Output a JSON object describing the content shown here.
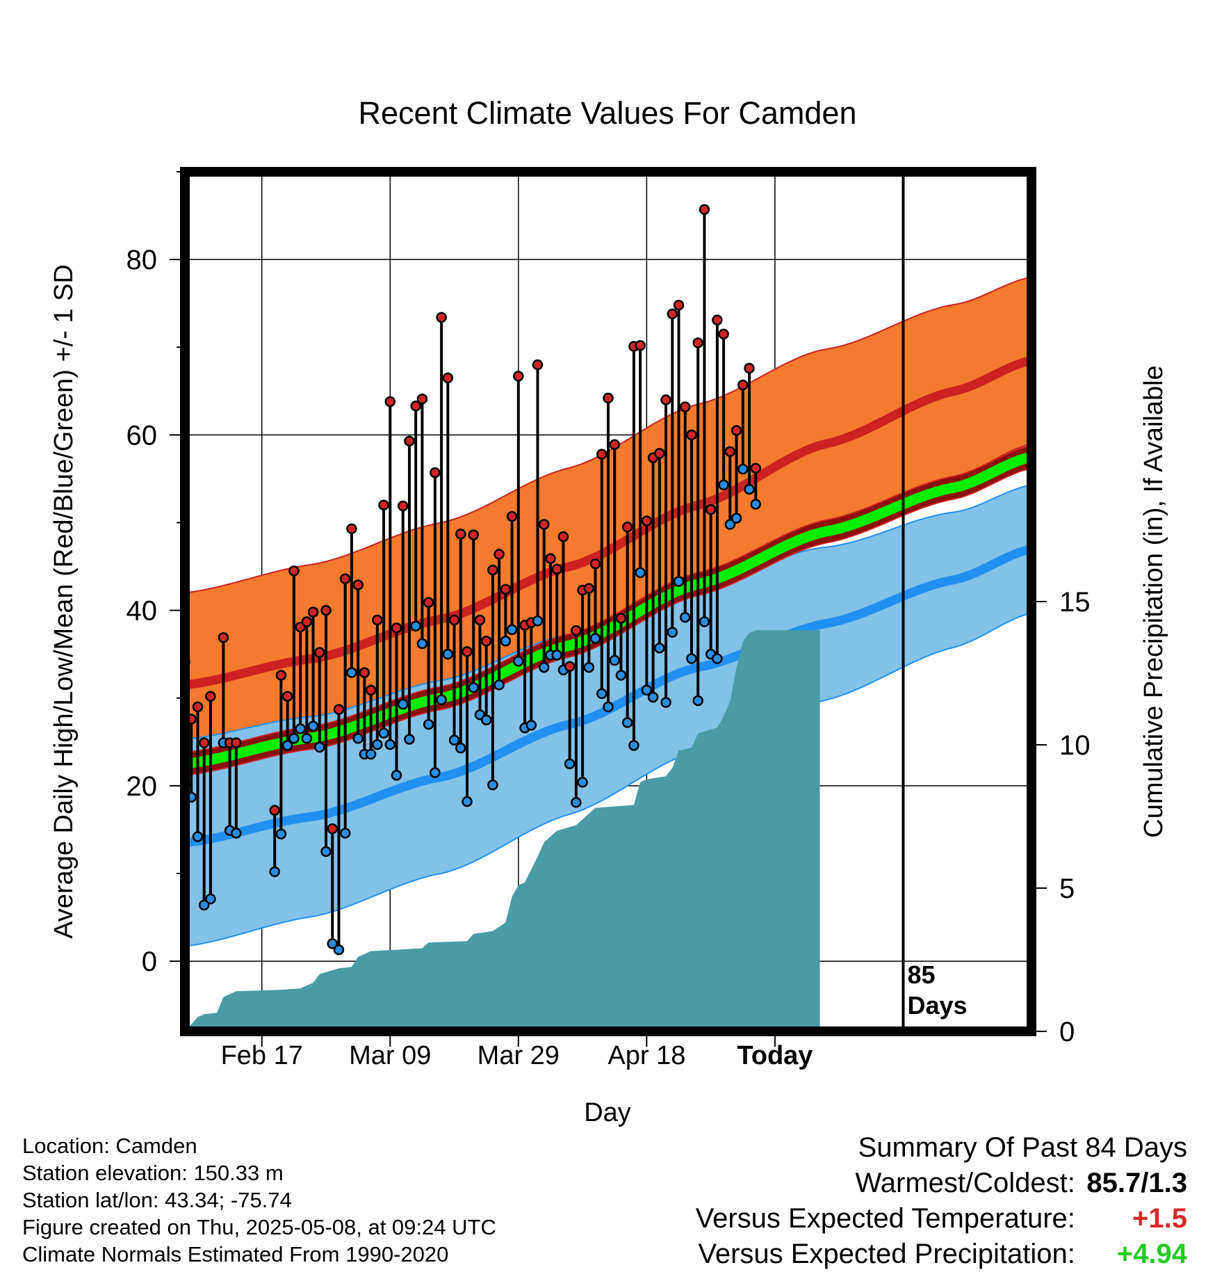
{
  "chart_data": {
    "type": "line",
    "title": "Recent Climate Values For Camden",
    "xlabel": "Day",
    "ylabel": "Average Daily High/Low/Mean (Red/Blue/Green) +/- 1 SD",
    "y2label": "Cumulative Precipitation (in), If Available",
    "x_tick_labels": [
      "Feb 17",
      "Mar 09",
      "Mar 29",
      "Apr 18",
      "Today"
    ],
    "y_ticks": [
      0,
      20,
      40,
      60,
      80
    ],
    "y2_ticks": [
      0,
      5,
      10,
      15
    ],
    "ylim": [
      -8,
      90
    ],
    "y2lim": [
      0,
      30
    ],
    "day_annotation": "85\nDays",
    "colors": {
      "high_band": "#f47a2f",
      "high_line": "#cc2222",
      "low_band": "#82c1e8",
      "low_line": "#2290f0",
      "mean_band": "#8b0f0f",
      "mean_line": "#00ee00",
      "precip": "#4a9ba5",
      "marker_high": "#d02525",
      "marker_low": "#2a8ee0"
    },
    "normal_high": [
      [
        0,
        31.5
      ],
      [
        20,
        34.5
      ],
      [
        40,
        39
      ],
      [
        60,
        45
      ],
      [
        80,
        52
      ],
      [
        100,
        59
      ],
      [
        120,
        65
      ],
      [
        132,
        68.5
      ]
    ],
    "normal_high_sd": [
      [
        0,
        10.5
      ],
      [
        40,
        11
      ],
      [
        80,
        11.5
      ],
      [
        132,
        9.5
      ]
    ],
    "normal_low": [
      [
        0,
        13.5
      ],
      [
        20,
        16.5
      ],
      [
        40,
        21
      ],
      [
        60,
        27
      ],
      [
        80,
        33.5
      ],
      [
        100,
        38.5
      ],
      [
        120,
        43.5
      ],
      [
        132,
        47
      ]
    ],
    "normal_low_sd": [
      [
        0,
        11.8
      ],
      [
        40,
        11
      ],
      [
        80,
        9.5
      ],
      [
        132,
        7.3
      ]
    ],
    "normal_mean": [
      [
        0,
        22.5
      ],
      [
        20,
        25.5
      ],
      [
        40,
        30
      ],
      [
        60,
        36
      ],
      [
        80,
        43
      ],
      [
        100,
        49
      ],
      [
        120,
        54
      ],
      [
        132,
        57.5
      ]
    ],
    "normal_mean_sd": [
      [
        0,
        1.3
      ],
      [
        132,
        1.3
      ]
    ],
    "observed": [
      {
        "d": 0,
        "hi": 34.1,
        "lo": 20.1
      },
      {
        "d": 1,
        "hi": 27.6,
        "lo": 18.7
      },
      {
        "d": 2,
        "hi": 29.0,
        "lo": 14.2
      },
      {
        "d": 3,
        "hi": 24.9,
        "lo": 6.4
      },
      {
        "d": 4,
        "hi": 30.2,
        "lo": 7.1
      },
      {
        "d": 6,
        "hi": 36.9,
        "lo": 24.9
      },
      {
        "d": 7,
        "hi": 24.9,
        "lo": 14.9
      },
      {
        "d": 8,
        "hi": 24.9,
        "lo": 14.6
      },
      {
        "d": 14,
        "hi": 17.2,
        "lo": 10.2
      },
      {
        "d": 15,
        "hi": 32.6,
        "lo": 14.5
      },
      {
        "d": 16,
        "hi": 30.2,
        "lo": 24.6
      },
      {
        "d": 17,
        "hi": 44.5,
        "lo": 25.4
      },
      {
        "d": 18,
        "hi": 38.1,
        "lo": 26.5
      },
      {
        "d": 19,
        "hi": 38.7,
        "lo": 25.4
      },
      {
        "d": 20,
        "hi": 39.8,
        "lo": 26.8
      },
      {
        "d": 21,
        "hi": 35.2,
        "lo": 24.4
      },
      {
        "d": 22,
        "hi": 40.0,
        "lo": 12.5
      },
      {
        "d": 23,
        "hi": 15.1,
        "lo": 2.0
      },
      {
        "d": 24,
        "hi": 28.7,
        "lo": 1.3
      },
      {
        "d": 25,
        "hi": 43.6,
        "lo": 14.6
      },
      {
        "d": 26,
        "hi": 49.3,
        "lo": 32.9
      },
      {
        "d": 27,
        "hi": 42.9,
        "lo": 25.4
      },
      {
        "d": 28,
        "hi": 32.9,
        "lo": 23.6
      },
      {
        "d": 29,
        "hi": 30.9,
        "lo": 23.6
      },
      {
        "d": 30,
        "hi": 38.9,
        "lo": 24.7
      },
      {
        "d": 31,
        "hi": 52.0,
        "lo": 26.0
      },
      {
        "d": 32,
        "hi": 63.8,
        "lo": 24.7
      },
      {
        "d": 33,
        "hi": 38.0,
        "lo": 21.2
      },
      {
        "d": 34,
        "hi": 51.9,
        "lo": 29.3
      },
      {
        "d": 35,
        "hi": 59.3,
        "lo": 25.3
      },
      {
        "d": 36,
        "hi": 63.3,
        "lo": 38.2
      },
      {
        "d": 37,
        "hi": 64.1,
        "lo": 36.2
      },
      {
        "d": 38,
        "hi": 40.9,
        "lo": 27.0
      },
      {
        "d": 39,
        "hi": 55.7,
        "lo": 21.5
      },
      {
        "d": 40,
        "hi": 73.4,
        "lo": 29.8
      },
      {
        "d": 41,
        "hi": 66.5,
        "lo": 35.0
      },
      {
        "d": 42,
        "hi": 38.9,
        "lo": 25.2
      },
      {
        "d": 43,
        "hi": 48.7,
        "lo": 24.3
      },
      {
        "d": 44,
        "hi": 35.3,
        "lo": 18.2
      },
      {
        "d": 45,
        "hi": 48.6,
        "lo": 31.2
      },
      {
        "d": 46,
        "hi": 38.9,
        "lo": 28.1
      },
      {
        "d": 47,
        "hi": 36.5,
        "lo": 27.5
      },
      {
        "d": 48,
        "hi": 44.6,
        "lo": 20.1
      },
      {
        "d": 49,
        "hi": 46.4,
        "lo": 31.5
      },
      {
        "d": 50,
        "hi": 42.4,
        "lo": 36.5
      },
      {
        "d": 51,
        "hi": 50.7,
        "lo": 37.8
      },
      {
        "d": 52,
        "hi": 66.7,
        "lo": 34.2
      },
      {
        "d": 53,
        "hi": 38.3,
        "lo": 26.6
      },
      {
        "d": 54,
        "hi": 38.6,
        "lo": 26.9
      },
      {
        "d": 55,
        "hi": 68.0,
        "lo": 38.8
      },
      {
        "d": 56,
        "hi": 49.8,
        "lo": 33.5
      },
      {
        "d": 57,
        "hi": 45.9,
        "lo": 34.9
      },
      {
        "d": 58,
        "hi": 44.7,
        "lo": 34.9
      },
      {
        "d": 59,
        "hi": 48.4,
        "lo": 33.2
      },
      {
        "d": 60,
        "hi": 33.6,
        "lo": 22.5
      },
      {
        "d": 61,
        "hi": 37.7,
        "lo": 18.1
      },
      {
        "d": 62,
        "hi": 42.3,
        "lo": 20.4
      },
      {
        "d": 63,
        "hi": 42.5,
        "lo": 33.5
      },
      {
        "d": 64,
        "hi": 45.3,
        "lo": 36.8
      },
      {
        "d": 65,
        "hi": 57.8,
        "lo": 30.5
      },
      {
        "d": 66,
        "hi": 64.2,
        "lo": 29.0
      },
      {
        "d": 67,
        "hi": 58.9,
        "lo": 34.3
      },
      {
        "d": 68,
        "hi": 39.1,
        "lo": 32.6
      },
      {
        "d": 69,
        "hi": 49.5,
        "lo": 27.2
      },
      {
        "d": 70,
        "hi": 70.1,
        "lo": 24.6
      },
      {
        "d": 71,
        "hi": 70.2,
        "lo": 44.3
      },
      {
        "d": 72,
        "hi": 50.2,
        "lo": 30.9
      },
      {
        "d": 73,
        "hi": 57.4,
        "lo": 30.1
      },
      {
        "d": 74,
        "hi": 57.9,
        "lo": 35.7
      },
      {
        "d": 75,
        "hi": 64.0,
        "lo": 29.5
      },
      {
        "d": 76,
        "hi": 73.8,
        "lo": 37.5
      },
      {
        "d": 77,
        "hi": 74.8,
        "lo": 43.3
      },
      {
        "d": 78,
        "hi": 63.2,
        "lo": 39.2
      },
      {
        "d": 79,
        "hi": 60.0,
        "lo": 34.5
      },
      {
        "d": 80,
        "hi": 70.5,
        "lo": 29.7
      },
      {
        "d": 81,
        "hi": 85.7,
        "lo": 38.7
      },
      {
        "d": 82,
        "hi": 51.5,
        "lo": 35.0
      },
      {
        "d": 83,
        "hi": 73.1,
        "lo": 34.5
      },
      {
        "d": 84,
        "hi": 71.5,
        "lo": 54.3
      },
      {
        "d": 85,
        "hi": 58.1,
        "lo": 49.8
      },
      {
        "d": 86,
        "hi": 60.5,
        "lo": 50.5
      },
      {
        "d": 87,
        "hi": 65.7,
        "lo": 56.1
      },
      {
        "d": 88,
        "hi": 67.6,
        "lo": 53.8
      },
      {
        "d": 89,
        "hi": 56.2,
        "lo": 52.1
      }
    ],
    "precip_cumulative": [
      [
        0,
        0
      ],
      [
        2,
        0.5
      ],
      [
        3,
        0.6
      ],
      [
        5,
        0.65
      ],
      [
        6,
        1.2
      ],
      [
        8,
        1.4
      ],
      [
        15,
        1.45
      ],
      [
        18,
        1.5
      ],
      [
        20,
        1.7
      ],
      [
        21,
        2.0
      ],
      [
        24,
        2.2
      ],
      [
        26,
        2.25
      ],
      [
        27,
        2.6
      ],
      [
        29,
        2.8
      ],
      [
        33,
        2.85
      ],
      [
        37,
        2.9
      ],
      [
        38,
        3.1
      ],
      [
        44,
        3.15
      ],
      [
        45,
        3.4
      ],
      [
        48,
        3.5
      ],
      [
        50,
        3.8
      ],
      [
        51,
        4.7
      ],
      [
        52,
        5.1
      ],
      [
        53,
        5.2
      ],
      [
        55,
        6.1
      ],
      [
        56,
        6.6
      ],
      [
        58,
        7.0
      ],
      [
        61,
        7.2
      ],
      [
        63,
        7.6
      ],
      [
        64,
        7.8
      ],
      [
        70,
        7.9
      ],
      [
        71,
        8.7
      ],
      [
        72,
        8.8
      ],
      [
        75,
        8.9
      ],
      [
        76,
        9.2
      ],
      [
        77,
        9.8
      ],
      [
        79,
        9.9
      ],
      [
        80,
        10.4
      ],
      [
        83,
        10.6
      ],
      [
        84,
        11.0
      ],
      [
        85,
        11.5
      ],
      [
        86,
        12.7
      ],
      [
        87,
        13.6
      ],
      [
        88,
        13.9
      ],
      [
        89,
        14.0
      ],
      [
        99,
        14.0
      ]
    ],
    "summary": {
      "heading": "Summary Of Past 84 Days",
      "rows": [
        {
          "label": "Warmest/Coldest:",
          "value": "85.7/1.3",
          "color": "#000000"
        },
        {
          "label": "Versus Expected Temperature:",
          "value": "+1.5",
          "color": "#d82a2a"
        },
        {
          "label": "Versus Expected Precipitation:",
          "value": "+4.94",
          "color": "#22cc22"
        }
      ]
    }
  },
  "info": {
    "location": "Location: Camden",
    "elevation": "Station elevation: 150.33 m",
    "latlon": "Station lat/lon: 43.34; -75.74",
    "created": "Figure created on Thu, 2025-05-08, at 09:24 UTC",
    "normals": "Climate Normals Estimated From 1990-2020"
  }
}
